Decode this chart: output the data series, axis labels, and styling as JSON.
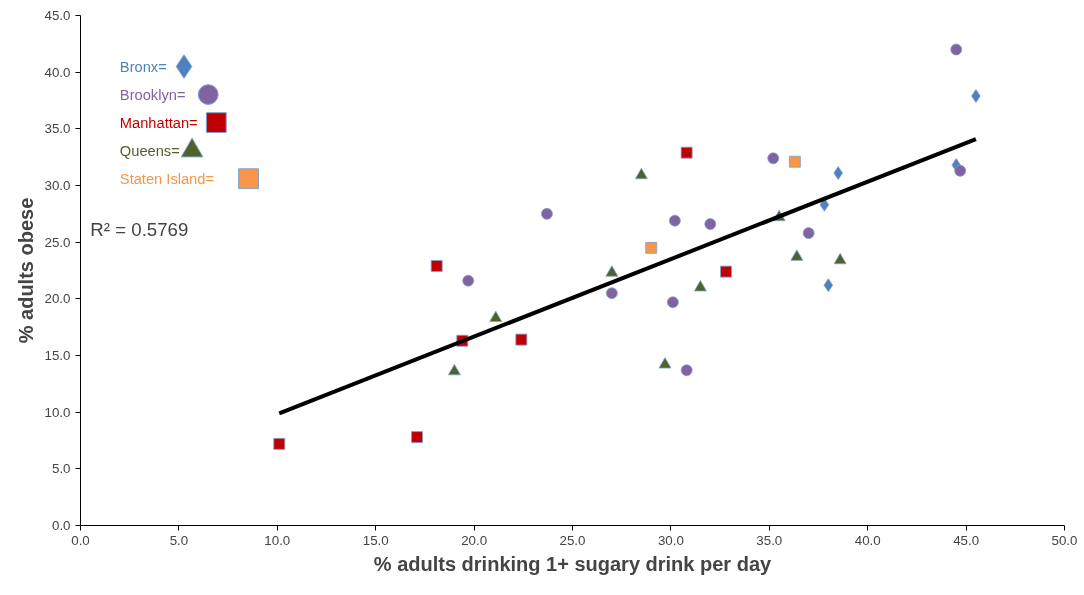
{
  "chart_data": {
    "type": "scatter",
    "xlabel": "% adults drinking 1+ sugary drink per day",
    "ylabel": "% adults obese",
    "xlim": [
      0,
      50
    ],
    "ylim": [
      0,
      45
    ],
    "xticks": [
      {
        "value": 0,
        "label": "0.0"
      },
      {
        "value": 5,
        "label": "5.0"
      },
      {
        "value": 10,
        "label": "10.0"
      },
      {
        "value": 15,
        "label": "15.0"
      },
      {
        "value": 20,
        "label": "20.0"
      },
      {
        "value": 25,
        "label": "25.0"
      },
      {
        "value": 30,
        "label": "30.0"
      },
      {
        "value": 35,
        "label": "35.0"
      },
      {
        "value": 40,
        "label": "40.0"
      },
      {
        "value": 45,
        "label": "45.0"
      },
      {
        "value": 50,
        "label": "50.0"
      }
    ],
    "yticks": [
      {
        "value": 0,
        "label": "0.0"
      },
      {
        "value": 5,
        "label": "5.0"
      },
      {
        "value": 10,
        "label": "10.0"
      },
      {
        "value": 15,
        "label": "15.0"
      },
      {
        "value": 20,
        "label": "20.0"
      },
      {
        "value": 25,
        "label": "25.0"
      },
      {
        "value": 30,
        "label": "30.0"
      },
      {
        "value": 35,
        "label": "35.0"
      },
      {
        "value": 40,
        "label": "40.0"
      },
      {
        "value": 45,
        "label": "45.0"
      }
    ],
    "grid": false,
    "legend": "top left",
    "annotations": [
      "R² = 0.5769"
    ],
    "series": [
      {
        "name": "Bronx=",
        "color": "#4f81bd",
        "marker": "diamond",
        "x": [
          45.5,
          44.5,
          38.5,
          37.8,
          38.0
        ],
        "values": [
          37.9,
          31.8,
          31.1,
          28.3,
          21.2
        ]
      },
      {
        "name": "Brooklyn=",
        "color": "#8064a2",
        "marker": "circle",
        "x": [
          44.5,
          44.7,
          35.2,
          37.0,
          32.0,
          30.2,
          23.7,
          19.7,
          27.0,
          30.1,
          30.8
        ],
        "values": [
          42.0,
          31.3,
          32.4,
          25.8,
          26.6,
          26.9,
          27.5,
          21.6,
          20.5,
          19.7,
          13.7
        ]
      },
      {
        "name": "Manhattan=",
        "color": "#c00000",
        "marker": "square",
        "x": [
          30.8,
          18.1,
          32.8,
          19.4,
          22.4,
          10.1,
          17.1
        ],
        "values": [
          32.9,
          22.9,
          22.4,
          16.3,
          16.4,
          7.2,
          7.8
        ]
      },
      {
        "name": "Queens=",
        "color": "#4f6228",
        "marker": "triangle",
        "x": [
          28.5,
          35.5,
          36.4,
          38.6,
          27.0,
          31.5,
          21.1,
          19.0,
          29.7
        ],
        "values": [
          30.9,
          27.2,
          23.7,
          23.4,
          22.3,
          21.0,
          18.3,
          13.6,
          14.2
        ]
      },
      {
        "name": "Staten Island=",
        "color": "#f79646",
        "marker": "square",
        "x": [
          36.3,
          29.0
        ],
        "values": [
          32.1,
          24.5
        ]
      },
      {
        "type": "line",
        "color": "#000000",
        "x": [
          10.1,
          45.5
        ],
        "values": [
          9.9,
          34.1
        ]
      }
    ]
  }
}
